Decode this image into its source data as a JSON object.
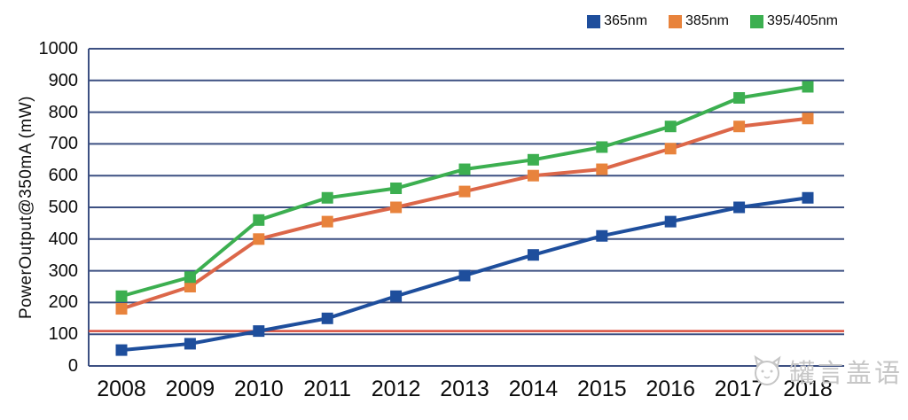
{
  "chart_data": {
    "type": "line",
    "title": "",
    "ylabel": "PowerOutput@350mA (mW)",
    "xlabel": "",
    "ylim": [
      0,
      1000
    ],
    "ytick_step": 100,
    "grid": "horizontal",
    "legend_position": "top-right",
    "categories": [
      "2008",
      "2009",
      "2010",
      "2011",
      "2012",
      "2013",
      "2014",
      "2015",
      "2016",
      "2017",
      "2018"
    ],
    "series": [
      {
        "name": "365nm",
        "color": "#1e4e9c",
        "marker": "square",
        "values": [
          50,
          70,
          110,
          150,
          220,
          285,
          350,
          410,
          455,
          500,
          530
        ]
      },
      {
        "name": "385nm",
        "color": "#dc6749",
        "marker": "square",
        "marker_color": "#e8833c",
        "values": [
          180,
          250,
          400,
          455,
          500,
          550,
          600,
          620,
          685,
          755,
          780
        ]
      },
      {
        "name": "395/405nm",
        "color": "#3caf50",
        "marker": "square",
        "values": [
          220,
          280,
          460,
          530,
          560,
          620,
          650,
          690,
          755,
          845,
          880
        ]
      }
    ],
    "reference_line": {
      "value": 110,
      "color": "#d9503e"
    }
  },
  "watermark": {
    "text": "罐言盖语",
    "icon": "cat-face-icon"
  },
  "colors": {
    "background": "#ffffff",
    "grid": "#3d5082",
    "axis": "#3d5082",
    "tick_text": "#0c0c0c",
    "watermark": "#c6c6c6"
  }
}
